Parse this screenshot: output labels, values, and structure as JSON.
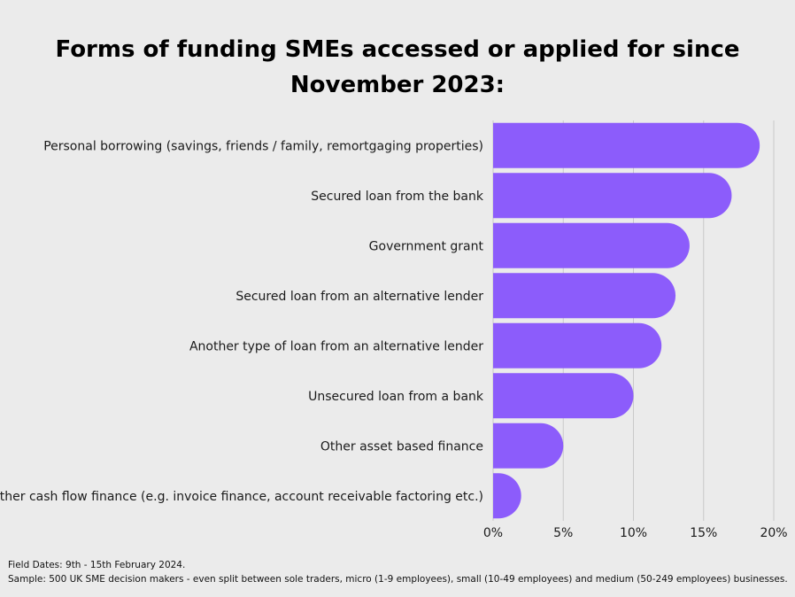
{
  "chart_data": {
    "type": "bar",
    "orientation": "horizontal",
    "title": "Forms of funding SMEs accessed or applied for since November 2023:",
    "categories": [
      "Personal borrowing (savings, friends / family, remortgaging properties)",
      "Secured loan from the bank",
      "Government grant",
      "Secured loan from an alternative lender",
      "Another type of loan from an alternative lender",
      "Unsecured loan from a bank",
      "Other asset based finance",
      "Other cash flow finance (e.g. invoice finance, account receivable factoring etc.)"
    ],
    "values": [
      19,
      17,
      14,
      13,
      12,
      10,
      5,
      2
    ],
    "value_unit": "%",
    "xlim": [
      0,
      20
    ],
    "x_ticks": [
      "0%",
      "5%",
      "10%",
      "15%",
      "20%"
    ],
    "grid": true,
    "bar_color": "#8c5cfb",
    "xlabel": "",
    "ylabel": ""
  },
  "footnotes": {
    "field_dates": "Field Dates: 9th - 15th February 2024.",
    "sample": "Sample: 500 UK SME decision makers - even split between sole traders, micro (1-9 employees), small (10-49 employees) and medium (50-249 employees) businesses."
  }
}
